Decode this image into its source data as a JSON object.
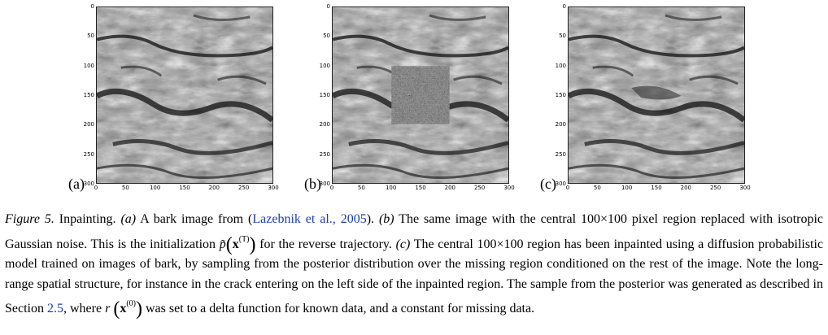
{
  "panels": [
    {
      "label": "(a)",
      "noise": false
    },
    {
      "label": "(b)",
      "noise": true
    },
    {
      "label": "(c)",
      "noise": false
    }
  ],
  "axes": {
    "yticks": [
      "0",
      "50",
      "100",
      "150",
      "200",
      "250",
      "300"
    ],
    "xticks": [
      "0",
      "50",
      "100",
      "150",
      "200",
      "250",
      "300"
    ]
  },
  "caption": {
    "figure_label": "Figure 5.",
    "title": "Inpainting.",
    "a_label": "(a)",
    "a_text": "A bark image from (",
    "citation": "Lazebnik et al., 2005",
    "a_end": ").",
    "b_label": "(b)",
    "b_text": "The same image with the central 100×100 pixel region replaced with isotropic Gaussian noise. This is the initialization",
    "p_symbol": "p̃",
    "x_symbol": "x",
    "x_sup_T": "(T)",
    "b_end": "for the reverse trajectory.",
    "c_label": "(c)",
    "c_text": "The central 100×100 region has been inpainted using a diffusion probabilistic model trained on images of bark, by sampling from the posterior distribution over the missing region conditioned on the rest of the image. Note the long-range spatial structure, for instance in the crack entering on the left side of the inpainted region. The sample from the posterior was generated as described in Section",
    "section_ref": "2.5",
    "c_text2": ", where",
    "r_symbol": "r",
    "x_sup_0": "(0)",
    "c_end": "was set to a delta function for known data, and a constant for missing data."
  }
}
